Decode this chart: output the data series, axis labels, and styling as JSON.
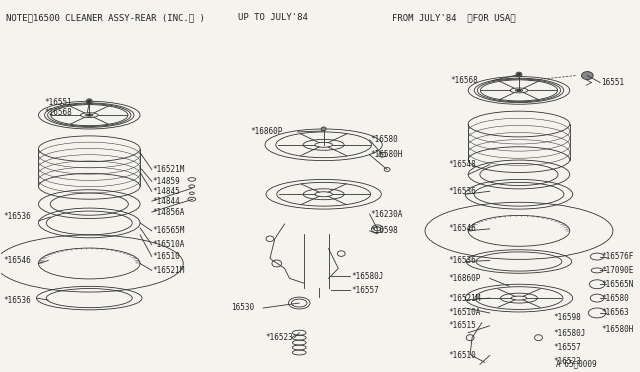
{
  "bg_color": "#f5f3ee",
  "line_color": "#333333",
  "text_color": "#222222",
  "header_note": "NOTEㅠ16500 CLEANER ASSY-REAR (INC.※ )",
  "header_upto": "UP TO JULY'84",
  "header_from": "FROM JULY'84  〈FOR USA〉",
  "diagram_code": "A'65〃0009"
}
